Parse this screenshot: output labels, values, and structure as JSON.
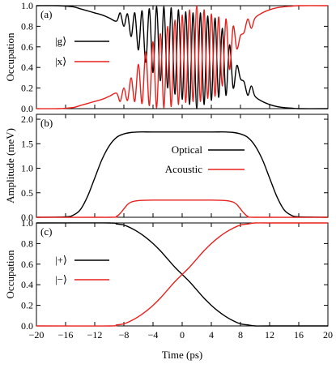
{
  "figure": {
    "xlabel": "Time (ps)"
  },
  "colors": {
    "black": "#000000",
    "red": "#e8201c"
  },
  "chart_data": [
    {
      "type": "line",
      "panel": "(a)",
      "ylabel": "Occupation",
      "xlim": [
        -20,
        20
      ],
      "ylim": [
        0.0,
        1.0
      ],
      "xticks": [
        -20,
        -16,
        -12,
        -8,
        -4,
        0,
        4,
        8,
        12,
        16,
        20
      ],
      "xticklabels": [
        "",
        "",
        "",
        "",
        "",
        "",
        "",
        "",
        "",
        "",
        ""
      ],
      "yticks": [
        0.0,
        0.2,
        0.4,
        0.6,
        0.8,
        1.0
      ],
      "yticklabels": [
        "0.0",
        "0.2",
        "0.4",
        "0.6",
        "0.8",
        "1.0"
      ],
      "legend": "upper-left",
      "series": [
        {
          "name": "|g⟩",
          "color": "#000000",
          "x": [
            -20,
            -17,
            -15,
            -14,
            -13,
            -12,
            -11,
            -10,
            -9,
            -8.5,
            -8,
            -7.5,
            -7,
            -6.5,
            -6,
            -5.5,
            -5,
            -4.5,
            -4,
            -3.5,
            -3,
            -2.5,
            -2,
            -1.5,
            -1,
            -0.5,
            0,
            0.5,
            1,
            1.5,
            2,
            2.5,
            3,
            3.5,
            4,
            4.5,
            5,
            5.5,
            6,
            6.5,
            7,
            7.5,
            8,
            8.5,
            9,
            9.5,
            10,
            11,
            12,
            13,
            14,
            15,
            16,
            20
          ],
          "y": [
            1.0,
            1.0,
            0.99,
            0.97,
            0.95,
            0.93,
            0.91,
            0.88,
            0.85,
            0.93,
            0.8,
            0.92,
            0.7,
            0.93,
            0.57,
            0.95,
            0.45,
            0.97,
            0.35,
            0.99,
            0.27,
            0.99,
            0.2,
            0.98,
            0.14,
            0.96,
            0.09,
            0.94,
            0.04,
            0.93,
            0.0,
            0.93,
            0.04,
            0.9,
            0.08,
            0.88,
            0.11,
            0.78,
            0.13,
            0.62,
            0.2,
            0.42,
            0.29,
            0.26,
            0.13,
            0.22,
            0.12,
            0.07,
            0.04,
            0.02,
            0.01,
            0.005,
            0.0,
            0.0
          ]
        },
        {
          "name": "|x⟩",
          "color": "#e8201c",
          "x": [
            -20,
            -17,
            -15,
            -14,
            -13,
            -12,
            -11,
            -10,
            -9,
            -8.5,
            -8,
            -7.5,
            -7,
            -6.5,
            -6,
            -5.5,
            -5,
            -4.5,
            -4,
            -3.5,
            -3,
            -2.5,
            -2,
            -1.5,
            -1,
            -0.5,
            0,
            0.5,
            1,
            1.5,
            2,
            2.5,
            3,
            3.5,
            4,
            4.5,
            5,
            5.5,
            6,
            6.5,
            7,
            7.5,
            8,
            8.5,
            9,
            9.5,
            10,
            11,
            12,
            13,
            14,
            15,
            16,
            20
          ],
          "y": [
            0.0,
            0.0,
            0.01,
            0.03,
            0.05,
            0.07,
            0.09,
            0.12,
            0.15,
            0.07,
            0.2,
            0.08,
            0.3,
            0.07,
            0.43,
            0.05,
            0.55,
            0.03,
            0.65,
            0.01,
            0.73,
            0.01,
            0.8,
            0.02,
            0.86,
            0.04,
            0.91,
            0.06,
            0.96,
            0.07,
            1.0,
            0.07,
            0.96,
            0.1,
            0.92,
            0.12,
            0.89,
            0.22,
            0.87,
            0.38,
            0.8,
            0.58,
            0.71,
            0.74,
            0.87,
            0.78,
            0.88,
            0.93,
            0.96,
            0.98,
            0.99,
            0.995,
            1.0,
            1.0
          ]
        }
      ]
    },
    {
      "type": "line",
      "panel": "(b)",
      "ylabel": "Amplitude (meV)",
      "xlim": [
        -20,
        20
      ],
      "ylim": [
        0.0,
        2.1
      ],
      "xticks": [
        -20,
        -16,
        -12,
        -8,
        -4,
        0,
        4,
        8,
        12,
        16,
        20
      ],
      "xticklabels": [
        "",
        "",
        "",
        "",
        "",
        "",
        "",
        "",
        "",
        "",
        ""
      ],
      "yticks": [
        0.0,
        0.5,
        1.0,
        1.5,
        2.0
      ],
      "yticklabels": [
        "0.0",
        "0.5",
        "1.0",
        "1.5",
        "2.0"
      ],
      "legend": "center",
      "series": [
        {
          "name": "Optical",
          "color": "#000000",
          "x": [
            -20,
            -16,
            -15,
            -14,
            -13,
            -12,
            -11,
            -10,
            -9,
            -8,
            -7,
            -6,
            -4,
            0,
            4,
            6,
            7,
            8,
            9,
            10,
            11,
            12,
            13,
            14,
            15,
            16,
            20
          ],
          "y": [
            0.0,
            0.01,
            0.04,
            0.15,
            0.42,
            0.8,
            1.18,
            1.46,
            1.63,
            1.7,
            1.73,
            1.74,
            1.74,
            1.74,
            1.74,
            1.74,
            1.73,
            1.7,
            1.63,
            1.46,
            1.18,
            0.8,
            0.42,
            0.15,
            0.04,
            0.01,
            0.0
          ]
        },
        {
          "name": "Acoustic",
          "color": "#e8201c",
          "x": [
            -20,
            -10,
            -9,
            -8.5,
            -8,
            -7.5,
            -7,
            -6,
            -4,
            0,
            4,
            6,
            7,
            7.5,
            8,
            8.5,
            9,
            10,
            20
          ],
          "y": [
            0.0,
            0.0,
            0.02,
            0.08,
            0.17,
            0.26,
            0.31,
            0.34,
            0.35,
            0.35,
            0.35,
            0.34,
            0.31,
            0.26,
            0.17,
            0.08,
            0.02,
            0.0,
            0.0
          ]
        }
      ]
    },
    {
      "type": "line",
      "panel": "(c)",
      "ylabel": "Occupation",
      "xlim": [
        -20,
        20
      ],
      "ylim": [
        0.0,
        1.0
      ],
      "xticks": [
        -20,
        -16,
        -12,
        -8,
        -4,
        0,
        4,
        8,
        12,
        16,
        20
      ],
      "xticklabels": [
        "−20",
        "−16",
        "−12",
        "−8",
        "−4",
        "0",
        "4",
        "8",
        "12",
        "16",
        "20"
      ],
      "yticks": [
        0.0,
        0.2,
        0.4,
        0.6,
        0.8,
        1.0
      ],
      "yticklabels": [
        "0.0",
        "0.2",
        "0.4",
        "0.6",
        "0.8",
        "1.0"
      ],
      "legend": "upper-left",
      "series": [
        {
          "name": "|+⟩",
          "color": "#000000",
          "x": [
            -20,
            -10,
            -9,
            -8,
            -7,
            -6,
            -5,
            -4,
            -3,
            -2,
            -1,
            0,
            1,
            2,
            3,
            4,
            5,
            6,
            7,
            8,
            9,
            10,
            12,
            20
          ],
          "y": [
            1.0,
            1.0,
            0.99,
            0.98,
            0.95,
            0.91,
            0.86,
            0.8,
            0.73,
            0.65,
            0.57,
            0.5,
            0.43,
            0.35,
            0.27,
            0.2,
            0.14,
            0.09,
            0.05,
            0.02,
            0.01,
            0.0,
            0.0,
            0.0
          ]
        },
        {
          "name": "|−⟩",
          "color": "#e8201c",
          "x": [
            -20,
            -10,
            -9,
            -8,
            -7,
            -6,
            -5,
            -4,
            -3,
            -2,
            -1,
            0,
            1,
            2,
            3,
            4,
            5,
            6,
            7,
            8,
            9,
            10,
            12,
            20
          ],
          "y": [
            0.0,
            0.0,
            0.01,
            0.02,
            0.05,
            0.09,
            0.14,
            0.2,
            0.27,
            0.35,
            0.43,
            0.5,
            0.57,
            0.65,
            0.73,
            0.8,
            0.86,
            0.91,
            0.95,
            0.98,
            0.99,
            1.0,
            1.0,
            1.0
          ]
        }
      ]
    }
  ]
}
